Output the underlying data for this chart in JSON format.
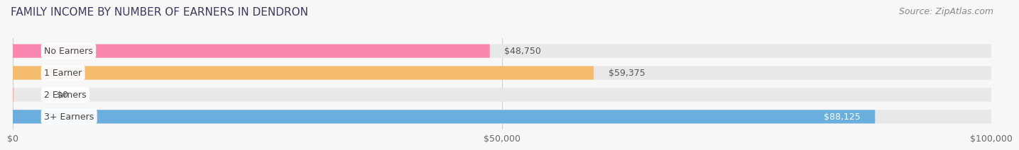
{
  "title": "FAMILY INCOME BY NUMBER OF EARNERS IN DENDRON",
  "source": "Source: ZipAtlas.com",
  "categories": [
    "No Earners",
    "1 Earner",
    "2 Earners",
    "3+ Earners"
  ],
  "values": [
    48750,
    59375,
    0,
    88125
  ],
  "bar_colors": [
    "#f986ae",
    "#f5bc6e",
    "#f4a8a8",
    "#6aaede"
  ],
  "bar_bg_color": "#e8e8e8",
  "xlim": [
    0,
    100000
  ],
  "xticks": [
    0,
    50000,
    100000
  ],
  "xtick_labels": [
    "$0",
    "$50,000",
    "$100,000"
  ],
  "title_fontsize": 11,
  "source_fontsize": 9,
  "tick_fontsize": 9,
  "label_fontsize": 9,
  "value_fontsize": 9,
  "bar_height": 0.62,
  "fig_bg_color": "#f7f7f7",
  "title_color": "#3a3a5c",
  "source_color": "#888888"
}
